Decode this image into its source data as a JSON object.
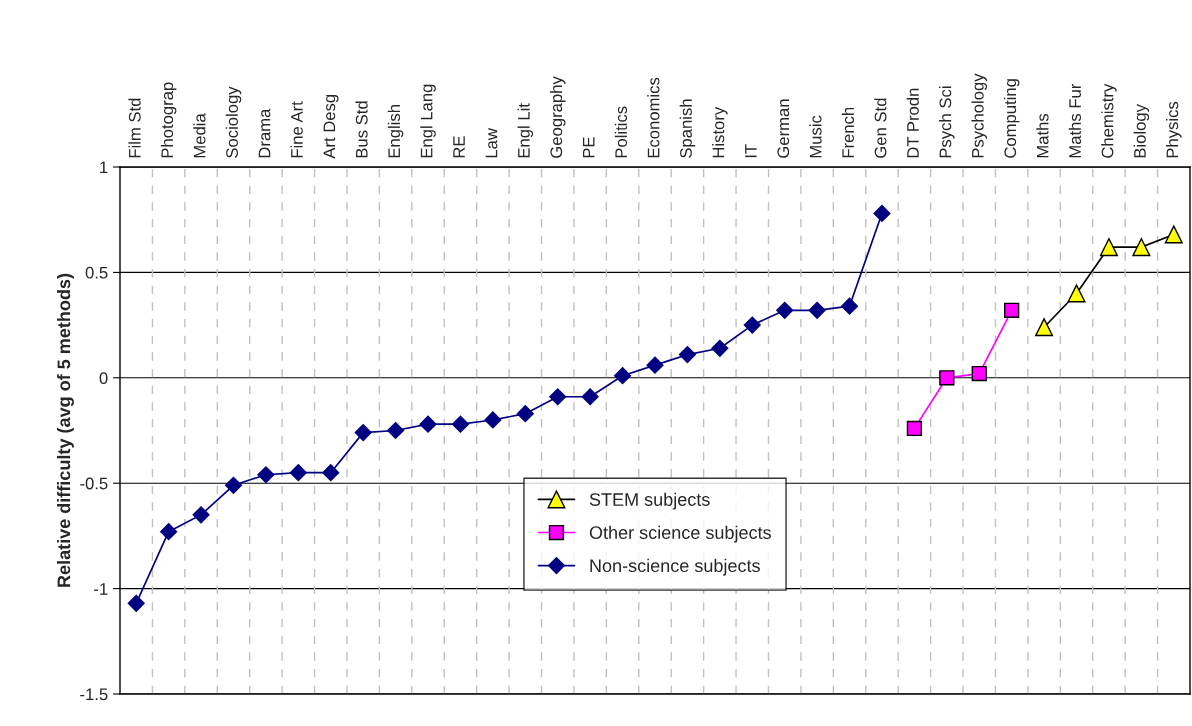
{
  "chart_data": {
    "type": "line",
    "ylabel": "Relative difficulty (avg of 5 methods)",
    "categories": [
      "Film Std",
      "Photograp",
      "Media",
      "Sociology",
      "Drama",
      "Fine Art",
      "Art Desg",
      "Bus Std",
      "English",
      "Engl Lang",
      "RE",
      "Law",
      "Engl Lit",
      "Geography",
      "PE",
      "Politics",
      "Economics",
      "Spanish",
      "History",
      "IT",
      "German",
      "Music",
      "French",
      "Gen Std",
      "DT Prodn",
      "Psych Sci",
      "Psychology",
      "Computing",
      "Maths",
      "Maths Fur",
      "Chemistry",
      "Biology",
      "Physics"
    ],
    "series": [
      {
        "name": "STEM subjects",
        "color": "#ffff00",
        "marker": "triangle",
        "values": [
          null,
          null,
          null,
          null,
          null,
          null,
          null,
          null,
          null,
          null,
          null,
          null,
          null,
          null,
          null,
          null,
          null,
          null,
          null,
          null,
          null,
          null,
          null,
          null,
          null,
          null,
          null,
          null,
          0.24,
          0.4,
          0.62,
          0.62,
          0.68
        ]
      },
      {
        "name": "Other science subjects",
        "color": "#ff00ff",
        "marker": "square",
        "values": [
          null,
          null,
          null,
          null,
          null,
          null,
          null,
          null,
          null,
          null,
          null,
          null,
          null,
          null,
          null,
          null,
          null,
          null,
          null,
          null,
          null,
          null,
          null,
          null,
          -0.24,
          0.0,
          0.02,
          0.32,
          null,
          null,
          null,
          null,
          null
        ]
      },
      {
        "name": "Non-science subjects",
        "color": "#000080",
        "marker": "diamond",
        "values": [
          -1.07,
          -0.73,
          -0.65,
          -0.51,
          -0.46,
          -0.45,
          -0.45,
          -0.26,
          -0.25,
          -0.22,
          -0.22,
          -0.2,
          -0.17,
          -0.09,
          -0.09,
          0.01,
          0.06,
          0.11,
          0.14,
          0.25,
          0.32,
          0.32,
          0.34,
          0.78,
          null,
          null,
          null,
          null,
          null,
          null,
          null,
          null,
          null
        ]
      }
    ],
    "ylim": [
      -1.5,
      1
    ],
    "yticks": [
      -1.5,
      -1,
      -0.5,
      0,
      0.5,
      1
    ],
    "grid": true,
    "legend": "bottom"
  }
}
